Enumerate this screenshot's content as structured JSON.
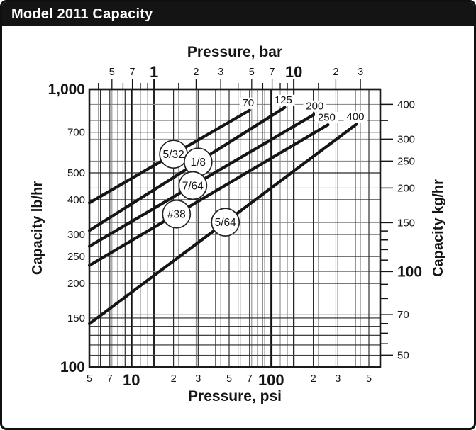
{
  "window": {
    "title": "Model 2011 Capacity"
  },
  "chart_data": {
    "type": "line",
    "title": "Model 2011 Capacity",
    "scale": "log-log",
    "units": {
      "psi_per_bar": 14.5038,
      "lb_per_kg": 2.20462
    },
    "axes": {
      "bottom": {
        "label": "Pressure, psi",
        "min": 5,
        "max": 600,
        "ticks": [
          {
            "v": 5,
            "t": "5"
          },
          {
            "v": 7,
            "t": "7"
          },
          {
            "v": 10,
            "t": "10",
            "big": true
          },
          {
            "v": 20,
            "t": "2"
          },
          {
            "v": 30,
            "t": "3"
          },
          {
            "v": 50,
            "t": "5"
          },
          {
            "v": 70,
            "t": "7"
          },
          {
            "v": 100,
            "t": "100",
            "big": true
          },
          {
            "v": 200,
            "t": "2"
          },
          {
            "v": 300,
            "t": "3"
          },
          {
            "v": 500,
            "t": "5"
          }
        ],
        "grid": [
          5,
          6,
          7,
          8,
          9,
          10,
          20,
          30,
          40,
          50,
          60,
          70,
          80,
          90,
          100,
          200,
          300,
          400,
          500
        ],
        "grid_major": [
          10,
          100
        ]
      },
      "top": {
        "label": "Pressure, bar",
        "min": 0.4,
        "max": 30,
        "ticks": [
          {
            "v": 0.4,
            "t": ""
          },
          {
            "v": 0.5,
            "t": "5"
          },
          {
            "v": 0.6,
            "t": ""
          },
          {
            "v": 0.7,
            "t": "7"
          },
          {
            "v": 0.8,
            "t": ""
          },
          {
            "v": 0.9,
            "t": ""
          },
          {
            "v": 1,
            "t": "1",
            "big": true
          },
          {
            "v": 1.5,
            "t": ""
          },
          {
            "v": 2,
            "t": "2"
          },
          {
            "v": 3,
            "t": "3"
          },
          {
            "v": 4,
            "t": ""
          },
          {
            "v": 5,
            "t": "5"
          },
          {
            "v": 6,
            "t": ""
          },
          {
            "v": 7,
            "t": "7"
          },
          {
            "v": 8,
            "t": ""
          },
          {
            "v": 9,
            "t": ""
          },
          {
            "v": 10,
            "t": "10",
            "big": true
          },
          {
            "v": 15,
            "t": ""
          },
          {
            "v": 20,
            "t": "2"
          },
          {
            "v": 30,
            "t": "3"
          }
        ],
        "grid_major": [
          1,
          10
        ]
      },
      "left": {
        "label": "Capacity lb/hr",
        "min": 100,
        "max": 1000,
        "ticks": [
          {
            "v": 100,
            "t": "100",
            "big": true
          },
          {
            "v": 150,
            "t": "150"
          },
          {
            "v": 200,
            "t": "200"
          },
          {
            "v": 250,
            "t": "250"
          },
          {
            "v": 300,
            "t": "300"
          },
          {
            "v": 400,
            "t": "400"
          },
          {
            "v": 500,
            "t": "500"
          },
          {
            "v": 700,
            "t": "700"
          },
          {
            "v": 1000,
            "t": "1,000",
            "big": true
          }
        ],
        "grid": [
          100,
          110,
          120,
          130,
          140,
          150,
          200,
          250,
          300,
          400,
          500,
          700,
          1000
        ],
        "grid_major": [
          100,
          1000
        ]
      },
      "right": {
        "label": "Capacity kg/hr",
        "min": 45,
        "max": 455,
        "ticks": [
          {
            "v": 50,
            "t": "50"
          },
          {
            "v": 55,
            "t": ""
          },
          {
            "v": 60,
            "t": ""
          },
          {
            "v": 65,
            "t": ""
          },
          {
            "v": 70,
            "t": "70"
          },
          {
            "v": 80,
            "t": ""
          },
          {
            "v": 90,
            "t": ""
          },
          {
            "v": 100,
            "t": "100",
            "big": true
          },
          {
            "v": 110,
            "t": ""
          },
          {
            "v": 120,
            "t": ""
          },
          {
            "v": 130,
            "t": ""
          },
          {
            "v": 140,
            "t": ""
          },
          {
            "v": 150,
            "t": "150"
          },
          {
            "v": 200,
            "t": "200"
          },
          {
            "v": 250,
            "t": "250"
          },
          {
            "v": 300,
            "t": "300"
          },
          {
            "v": 350,
            "t": ""
          },
          {
            "v": 400,
            "t": "400"
          }
        ],
        "grid": [
          50,
          70,
          100,
          150,
          200,
          250,
          300,
          350,
          400
        ]
      }
    },
    "series": [
      {
        "orifice": "5/32",
        "end_label": "70",
        "circle_psi": 20,
        "points": [
          [
            5,
            390
          ],
          [
            70,
            840
          ]
        ]
      },
      {
        "orifice": "1/8",
        "end_label": "125",
        "circle_psi": 30,
        "points": [
          [
            5,
            310
          ],
          [
            125,
            860
          ]
        ]
      },
      {
        "orifice": "7/64",
        "end_label": "200",
        "circle_psi": 27.5,
        "points": [
          [
            5,
            272
          ],
          [
            210,
            820
          ]
        ]
      },
      {
        "orifice": "#38",
        "end_label": "250",
        "circle_psi": 21,
        "points": [
          [
            5,
            232
          ],
          [
            255,
            745
          ]
        ]
      },
      {
        "orifice": "5/64",
        "end_label": "400",
        "circle_psi": 47,
        "points": [
          [
            5,
            143
          ],
          [
            410,
            750
          ]
        ]
      }
    ],
    "colors": {
      "curve": "#151515",
      "frame": "#1a1a1a",
      "grid_dark": "#262626",
      "grid_major": "#111111",
      "grid_gray": "#8d8d8d",
      "grid_gray_major": "#222222"
    }
  }
}
